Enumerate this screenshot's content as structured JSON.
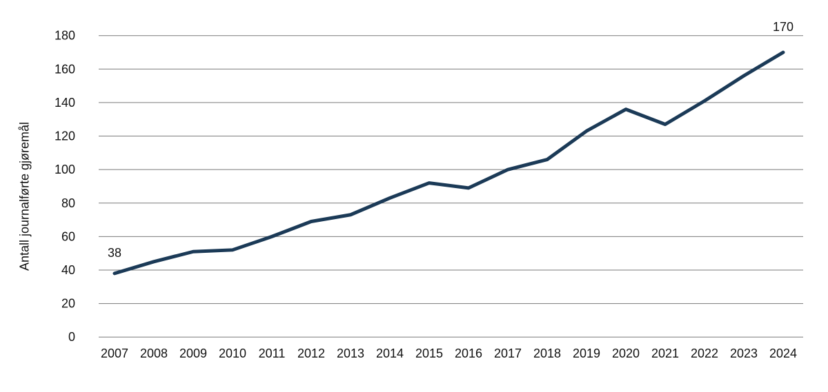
{
  "chart_data": {
    "type": "line",
    "title": "",
    "xlabel": "",
    "ylabel": "Antall journalførte gjøremål",
    "x": [
      2007,
      2008,
      2009,
      2010,
      2011,
      2012,
      2013,
      2014,
      2015,
      2016,
      2017,
      2018,
      2019,
      2020,
      2021,
      2022,
      2023,
      2024
    ],
    "values": [
      38,
      45,
      51,
      52,
      60,
      69,
      73,
      83,
      92,
      89,
      100,
      106,
      123,
      136,
      127,
      141,
      156,
      170
    ],
    "ylim": [
      0,
      180
    ],
    "y_tick_step": 20,
    "y_tick_labels": [
      "0",
      "20",
      "40",
      "60",
      "80",
      "100",
      "120",
      "140",
      "160",
      "180"
    ],
    "grid": true,
    "legend": false,
    "line_color": "#1b3a57",
    "gridline_color": "#7a7a7a",
    "text_color": "#111111",
    "annotations": [
      {
        "x": 2007,
        "value": 38,
        "label": "38"
      },
      {
        "x": 2024,
        "value": 170,
        "label": "170"
      }
    ]
  }
}
